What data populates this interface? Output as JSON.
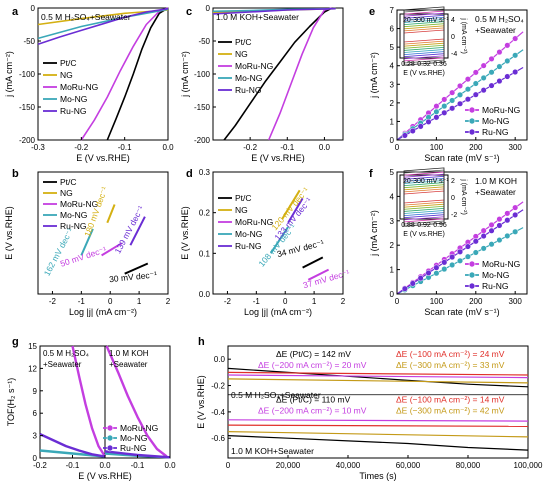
{
  "colors": {
    "ptc": "#000000",
    "ng": "#d4b012",
    "moru": "#c43ee0",
    "mo": "#3aa8b8",
    "ru": "#6a2dd4",
    "red": "#e0302a",
    "olive": "#c49a18"
  },
  "chart_data": [
    {
      "panel": "a",
      "type": "line",
      "annotation": "0.5 M H₂SO₄+Seawater",
      "xlabel": "E (V vs.RHE)",
      "ylabel": "j (mA cm⁻²)",
      "xlim": [
        -0.3,
        0.0
      ],
      "ylim": [
        -200,
        0
      ],
      "xticks": [
        "-0.3",
        "-0.2",
        "-0.1",
        "0.0"
      ],
      "yticks": [
        "-200",
        "-150",
        "-100",
        "-50",
        "0"
      ],
      "legend": [
        "Pt/C",
        "NG",
        "MoRu-NG",
        "Mo-NG",
        "Ru-NG"
      ],
      "series": [
        {
          "name": "Pt/C",
          "color": "ptc",
          "x": [
            0.0,
            -0.02,
            -0.04,
            -0.06,
            -0.08,
            -0.1,
            -0.12,
            -0.14
          ],
          "y": [
            0,
            -8,
            -30,
            -62,
            -100,
            -135,
            -168,
            -200
          ]
        },
        {
          "name": "NG",
          "color": "ng",
          "x": [
            0.0,
            -0.1,
            -0.2,
            -0.3
          ],
          "y": [
            -3,
            -8,
            -16,
            -25
          ]
        },
        {
          "name": "MoRu-NG",
          "color": "moru",
          "x": [
            0.0,
            -0.02,
            -0.05,
            -0.08,
            -0.11,
            -0.14,
            -0.17,
            -0.2
          ],
          "y": [
            0,
            -5,
            -25,
            -58,
            -95,
            -135,
            -170,
            -200
          ]
        },
        {
          "name": "Mo-NG",
          "color": "mo",
          "x": [
            0.0,
            -0.1,
            -0.2,
            -0.3
          ],
          "y": [
            -2,
            -14,
            -28,
            -46
          ]
        },
        {
          "name": "Ru-NG",
          "color": "ru",
          "x": [
            0.0,
            -0.05,
            -0.1,
            -0.15,
            -0.2,
            -0.25,
            -0.3
          ],
          "y": [
            -1,
            -6,
            -14,
            -24,
            -34,
            -44,
            -55
          ]
        }
      ]
    },
    {
      "panel": "b",
      "type": "line",
      "xlabel": "Log |j| (mA cm⁻²)",
      "ylabel": "E (V vs.RHE)",
      "xlim": [
        -2.5,
        2.0
      ],
      "ylim": [
        0.0,
        0.3
      ],
      "xticks": [
        "-2",
        "-1",
        "0",
        "1",
        "2"
      ],
      "legend": [
        "Pt/C",
        "NG",
        "MoRu-NG",
        "Mo-NG",
        "Ru-NG"
      ],
      "tafel": [
        "30 mV dec⁻¹",
        "180 mV dec⁻¹",
        "50 mV dec⁻¹",
        "162 mV dec⁻¹",
        "139 mV dec⁻¹"
      ],
      "series": [
        {
          "name": "Pt/C",
          "color": "ptc",
          "x": [
            0.5,
            1.3
          ],
          "y": [
            0.05,
            0.075
          ]
        },
        {
          "name": "NG",
          "color": "ng",
          "x": [
            -0.1,
            0.15
          ],
          "y": [
            0.175,
            0.22
          ]
        },
        {
          "name": "MoRu-NG",
          "color": "moru",
          "x": [
            -0.3,
            0.4
          ],
          "y": [
            0.095,
            0.125
          ]
        },
        {
          "name": "Mo-NG",
          "color": "mo",
          "x": [
            -1.0,
            -0.6
          ],
          "y": [
            0.095,
            0.16
          ]
        },
        {
          "name": "Ru-NG",
          "color": "ru",
          "x": [
            0.7,
            1.2
          ],
          "y": [
            0.12,
            0.19
          ]
        }
      ]
    },
    {
      "panel": "c",
      "type": "line",
      "annotation": "1.0 M KOH+Seawater",
      "xlabel": "E (V vs.RHE)",
      "ylabel": "j (mA cm⁻²)",
      "xlim": [
        -0.3,
        0.05
      ],
      "ylim": [
        -200,
        0
      ],
      "xticks": [
        "-0.2",
        "-0.1",
        "0.0"
      ],
      "yticks": [
        "-200",
        "-150",
        "-100",
        "-50",
        "0"
      ],
      "legend": [
        "Pt/C",
        "NG",
        "MoRu-NG",
        "Mo-NG",
        "Ru-NG"
      ],
      "series": [
        {
          "name": "Pt/C",
          "color": "ptc",
          "x": [
            0.02,
            0.0,
            -0.04,
            -0.08,
            -0.12,
            -0.16,
            -0.2,
            -0.24,
            -0.27
          ],
          "y": [
            0,
            -6,
            -28,
            -52,
            -82,
            -112,
            -145,
            -178,
            -200
          ]
        },
        {
          "name": "NG",
          "color": "ng",
          "x": [
            0.03,
            -0.1,
            -0.2,
            -0.3
          ],
          "y": [
            -1,
            -3,
            -5,
            -7
          ]
        },
        {
          "name": "MoRu-NG",
          "color": "moru",
          "x": [
            0.02,
            0.0,
            -0.03,
            -0.06,
            -0.09,
            -0.12,
            -0.15
          ],
          "y": [
            0,
            -3,
            -30,
            -70,
            -115,
            -160,
            -200
          ]
        },
        {
          "name": "Mo-NG",
          "color": "mo",
          "x": [
            0.03,
            -0.1,
            -0.2,
            -0.3
          ],
          "y": [
            -1,
            -2,
            -4,
            -5
          ]
        },
        {
          "name": "Ru-NG",
          "color": "ru",
          "x": [
            0.03,
            -0.1,
            -0.2,
            -0.3
          ],
          "y": [
            -1,
            -3,
            -6,
            -9
          ]
        }
      ]
    },
    {
      "panel": "d",
      "type": "line",
      "xlabel": "Log |j| (mA cm⁻²)",
      "ylabel": "E (V vs.RHE)",
      "xlim": [
        -2.5,
        2.0
      ],
      "ylim": [
        0.0,
        0.3
      ],
      "xticks": [
        "-2",
        "-1",
        "0",
        "1",
        "2"
      ],
      "yticks": [
        "0.0",
        "0.1",
        "0.2",
        "0.3"
      ],
      "legend": [
        "Pt/C",
        "NG",
        "MoRu-NG",
        "Mo-NG",
        "Ru-NG"
      ],
      "tafel": [
        "34 mV dec⁻¹",
        "120 mV dec⁻¹",
        "37 mV dec⁻¹",
        "108 mV dec⁻¹",
        "133 mV dec⁻¹"
      ],
      "series": [
        {
          "name": "Pt/C",
          "color": "ptc",
          "x": [
            0.6,
            1.3
          ],
          "y": [
            0.065,
            0.09
          ]
        },
        {
          "name": "NG",
          "color": "ng",
          "x": [
            -0.1,
            0.5
          ],
          "y": [
            0.185,
            0.255
          ]
        },
        {
          "name": "MoRu-NG",
          "color": "moru",
          "x": [
            0.8,
            1.5
          ],
          "y": [
            0.035,
            0.06
          ]
        },
        {
          "name": "Mo-NG",
          "color": "mo",
          "x": [
            -0.5,
            0.1
          ],
          "y": [
            0.1,
            0.165
          ]
        },
        {
          "name": "Ru-NG",
          "color": "ru",
          "x": [
            0.1,
            0.6
          ],
          "y": [
            0.175,
            0.235
          ]
        }
      ]
    },
    {
      "panel": "e",
      "type": "scatter",
      "annotation": "0.5 M H₂SO₄\n+Seawater",
      "xlabel": "Scan rate (mV s⁻¹)",
      "ylabel": "j (mA cm⁻²)",
      "xlim": [
        0,
        330
      ],
      "ylim": [
        0,
        7
      ],
      "xticks": [
        "0",
        "100",
        "200",
        "300"
      ],
      "yticks": [
        "0",
        "1",
        "2",
        "3",
        "4",
        "5",
        "6",
        "7"
      ],
      "legend": [
        "MoRu-NG",
        "Mo-NG",
        "Ru-NG"
      ],
      "x": [
        20,
        40,
        60,
        80,
        100,
        120,
        140,
        160,
        180,
        200,
        220,
        240,
        260,
        280,
        300
      ],
      "series": [
        {
          "name": "MoRu-NG",
          "color": "moru",
          "slope": 0.0182
        },
        {
          "name": "Mo-NG",
          "color": "mo",
          "slope": 0.0152
        },
        {
          "name": "Ru-NG",
          "color": "ru",
          "slope": 0.0122
        }
      ],
      "inset": {
        "label": "20-300 mV s⁻¹",
        "xlabel": "E (V vs.RHE)",
        "ylabel": "j (mA cm⁻²)",
        "xticks": [
          "0.28",
          "0.32",
          "0.36"
        ],
        "yticks": [
          "4",
          "0",
          "-4"
        ]
      }
    },
    {
      "panel": "f",
      "type": "scatter",
      "annotation": "1.0 M KOH\n+Seawater",
      "xlabel": "Scan rate (mV s⁻¹)",
      "ylabel": "j (mA cm⁻²)",
      "xlim": [
        0,
        330
      ],
      "ylim": [
        0,
        5
      ],
      "xticks": [
        "0",
        "100",
        "200",
        "300"
      ],
      "yticks": [
        "0",
        "1",
        "2",
        "3",
        "4",
        "5"
      ],
      "legend": [
        "MoRu-NG",
        "Mo-NG",
        "Ru-NG"
      ],
      "x": [
        20,
        40,
        60,
        80,
        100,
        120,
        140,
        160,
        180,
        200,
        220,
        240,
        260,
        280,
        300
      ],
      "series": [
        {
          "name": "MoRu-NG",
          "color": "moru",
          "slope": 0.0118
        },
        {
          "name": "Mo-NG",
          "color": "mo",
          "slope": 0.0085
        },
        {
          "name": "Ru-NG",
          "color": "ru",
          "slope": 0.0108
        }
      ],
      "inset": {
        "label": "20-300 mV s⁻¹",
        "xlabel": "E (V vs.RHE)",
        "ylabel": "j (mA cm⁻²)",
        "xticks": [
          "0.88",
          "0.92",
          "0.96"
        ],
        "yticks": [
          "2",
          "0",
          "-2"
        ]
      }
    },
    {
      "panel": "g",
      "type": "line",
      "annotation_left": "0.5 M H₂SO₄\n+Seawater",
      "annotation_right": "1.0 M KOH\n+Seawater",
      "xlabel": "E (V vs.RHE)",
      "ylabel": "TOF(H₂ s⁻¹)",
      "xlim_left": [
        -0.2,
        0.0
      ],
      "xlim_right": [
        -0.2,
        0.0
      ],
      "ylim": [
        0,
        15
      ],
      "xticks": [
        "-0.2",
        "-0.1",
        "0.0",
        "-0.1",
        "0.0"
      ],
      "yticks": [
        "0",
        "3",
        "6",
        "9",
        "12",
        "15"
      ],
      "legend": [
        "MoRu-NG",
        "Mo-NG",
        "Ru-NG"
      ],
      "left": [
        {
          "name": "MoRu-NG",
          "color": "moru",
          "x": [
            -0.1,
            -0.08,
            -0.06,
            -0.04,
            -0.02,
            0.0
          ],
          "y": [
            15,
            11,
            7.2,
            4.0,
            1.6,
            0.2
          ]
        },
        {
          "name": "Mo-NG",
          "color": "mo",
          "x": [
            -0.2,
            -0.15,
            -0.1,
            -0.05,
            0.0
          ],
          "y": [
            1.0,
            0.8,
            0.6,
            0.4,
            0.2
          ]
        },
        {
          "name": "Ru-NG",
          "color": "ru",
          "x": [
            -0.2,
            -0.16,
            -0.12,
            -0.08,
            -0.04,
            0.0
          ],
          "y": [
            3.2,
            2.4,
            1.6,
            1.0,
            0.5,
            0.2
          ]
        }
      ],
      "right": [
        {
          "name": "MoRu-NG",
          "color": "moru",
          "x": [
            -0.195,
            -0.16,
            -0.13,
            -0.1,
            -0.07,
            -0.04,
            -0.01
          ],
          "y": [
            15,
            11.5,
            8.3,
            5.5,
            3.0,
            1.2,
            0.2
          ]
        },
        {
          "name": "Mo-NG",
          "color": "mo",
          "x": [
            -0.2,
            -0.1,
            0.0
          ],
          "y": [
            0.6,
            0.3,
            0.1
          ]
        },
        {
          "name": "Ru-NG",
          "color": "ru",
          "x": [
            -0.2,
            -0.1,
            0.0
          ],
          "y": [
            0.9,
            0.4,
            0.1
          ]
        }
      ]
    },
    {
      "panel": "h",
      "type": "line",
      "xlabel": "Times (s)",
      "ylabel": "E (V vs.RHE)",
      "xlim": [
        0,
        100000
      ],
      "ylim": [
        -0.75,
        0.1
      ],
      "xticks": [
        "0",
        "20,000",
        "40,000",
        "60,000",
        "80,000",
        "100,000"
      ],
      "yticks": [
        "0.0",
        "-0.2",
        "-0.4",
        "-0.6"
      ],
      "labels": {
        "acid": "0.5 M H₂SO₄+Seawater",
        "base": "1.0 M KOH+Seawater",
        "acid_ptc": "ΔE (Pt/C) = 142 mV",
        "acid_200": "ΔE (−200 mA cm⁻²) = 20 mV",
        "acid_100": "ΔE (−100 mA cm⁻²) = 24 mV",
        "acid_300": "ΔE (−300 mA cm⁻²) = 33 mV",
        "base_ptc": "ΔE (Pt/C) = 110 mV",
        "base_200": "ΔE (−200 mA cm⁻²) = 10 mV",
        "base_100": "ΔE (−100 mA cm⁻²) = 14 mV",
        "base_300": "ΔE (−300 mA cm⁻²) = 42 mV"
      },
      "series": [
        {
          "name": "Pt/C acid",
          "color": "ptc",
          "x": [
            0,
            20000,
            40000,
            60000,
            80000,
            100000
          ],
          "y": [
            -0.07,
            -0.1,
            -0.13,
            -0.16,
            -0.19,
            -0.21
          ]
        },
        {
          "name": "-100 acid",
          "color": "red",
          "x": [
            0,
            100000
          ],
          "y": [
            -0.1,
            -0.12
          ]
        },
        {
          "name": "-200 acid",
          "color": "moru",
          "x": [
            0,
            100000
          ],
          "y": [
            -0.12,
            -0.14
          ]
        },
        {
          "name": "-300 acid",
          "color": "olive",
          "x": [
            0,
            100000
          ],
          "y": [
            -0.15,
            -0.18
          ]
        },
        {
          "name": "Pt/C base",
          "color": "ptc",
          "x": [
            0,
            20000,
            40000,
            60000,
            80000,
            100000
          ],
          "y": [
            -0.58,
            -0.6,
            -0.62,
            -0.64,
            -0.67,
            -0.69
          ]
        },
        {
          "name": "-100 base",
          "color": "red",
          "x": [
            0,
            100000
          ],
          "y": [
            -0.5,
            -0.51
          ]
        },
        {
          "name": "-200 base",
          "color": "moru",
          "x": [
            0,
            100000
          ],
          "y": [
            -0.46,
            -0.47
          ]
        },
        {
          "name": "-300 base",
          "color": "olive",
          "x": [
            0,
            100000
          ],
          "y": [
            -0.55,
            -0.59
          ]
        }
      ]
    }
  ]
}
